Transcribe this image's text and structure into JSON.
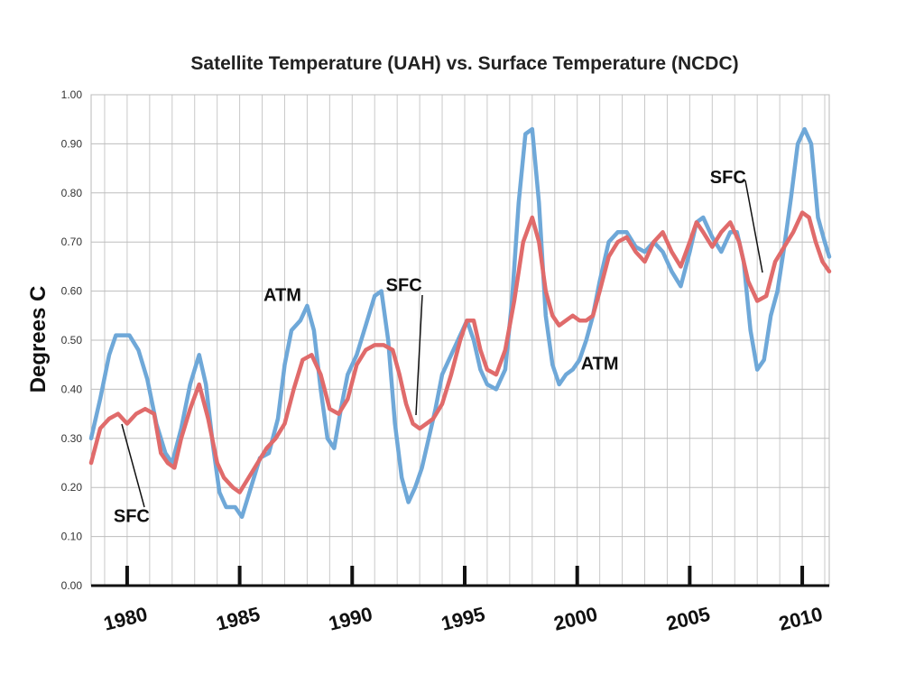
{
  "chart_data": {
    "type": "line",
    "title": "Satellite Temperature (UAH) vs. Surface Temperature (NCDC)",
    "ylabel": "Degrees C",
    "xlabel": "",
    "xlim": [
      1978.4,
      2011.2
    ],
    "ylim": [
      0.0,
      1.0
    ],
    "yticks": [
      "0.00",
      "0.10",
      "0.20",
      "0.30",
      "0.40",
      "0.50",
      "0.60",
      "0.70",
      "0.80",
      "0.90",
      "1.00"
    ],
    "xticks": [
      "1980",
      "1985",
      "1990",
      "1995",
      "2000",
      "2005",
      "2010"
    ],
    "grid": true,
    "series": [
      {
        "name": "ATM",
        "color": "#6fa8d8",
        "x": [
          1978.4,
          1978.8,
          1979.2,
          1979.5,
          1979.8,
          1980.1,
          1980.5,
          1980.9,
          1981.3,
          1981.7,
          1982.0,
          1982.4,
          1982.8,
          1983.2,
          1983.5,
          1983.8,
          1984.1,
          1984.4,
          1984.8,
          1985.1,
          1985.5,
          1985.9,
          1986.3,
          1986.7,
          1987.0,
          1987.3,
          1987.7,
          1988.0,
          1988.3,
          1988.6,
          1988.9,
          1989.2,
          1989.5,
          1989.8,
          1990.2,
          1990.6,
          1991.0,
          1991.3,
          1991.6,
          1991.9,
          1992.2,
          1992.5,
          1992.8,
          1993.1,
          1993.4,
          1993.7,
          1994.0,
          1994.4,
          1994.8,
          1995.1,
          1995.4,
          1995.7,
          1996.0,
          1996.4,
          1996.8,
          1997.1,
          1997.4,
          1997.7,
          1998.0,
          1998.3,
          1998.6,
          1998.9,
          1999.2,
          1999.5,
          1999.8,
          2000.1,
          2000.4,
          2000.7,
          2001.0,
          2001.4,
          2001.8,
          2002.2,
          2002.6,
          2003.0,
          2003.4,
          2003.8,
          2004.2,
          2004.6,
          2005.0,
          2005.3,
          2005.6,
          2006.0,
          2006.4,
          2006.8,
          2007.1,
          2007.4,
          2007.7,
          2008.0,
          2008.3,
          2008.6,
          2008.9,
          2009.2,
          2009.5,
          2009.8,
          2010.1,
          2010.4,
          2010.7,
          2011.0,
          2011.2
        ],
        "values": [
          0.3,
          0.38,
          0.47,
          0.51,
          0.51,
          0.51,
          0.48,
          0.42,
          0.33,
          0.27,
          0.25,
          0.32,
          0.41,
          0.47,
          0.41,
          0.29,
          0.19,
          0.16,
          0.16,
          0.14,
          0.2,
          0.26,
          0.27,
          0.34,
          0.45,
          0.52,
          0.54,
          0.57,
          0.52,
          0.4,
          0.3,
          0.28,
          0.36,
          0.43,
          0.47,
          0.53,
          0.59,
          0.6,
          0.5,
          0.33,
          0.22,
          0.17,
          0.2,
          0.24,
          0.3,
          0.36,
          0.43,
          0.47,
          0.51,
          0.54,
          0.5,
          0.44,
          0.41,
          0.4,
          0.44,
          0.58,
          0.78,
          0.92,
          0.93,
          0.78,
          0.55,
          0.45,
          0.41,
          0.43,
          0.44,
          0.46,
          0.5,
          0.55,
          0.62,
          0.7,
          0.72,
          0.72,
          0.69,
          0.68,
          0.7,
          0.68,
          0.64,
          0.61,
          0.68,
          0.74,
          0.75,
          0.71,
          0.68,
          0.72,
          0.72,
          0.66,
          0.52,
          0.44,
          0.46,
          0.55,
          0.6,
          0.69,
          0.79,
          0.9,
          0.93,
          0.9,
          0.75,
          0.7,
          0.67
        ]
      },
      {
        "name": "SFC",
        "color": "#e06b6b",
        "x": [
          1978.4,
          1978.8,
          1979.2,
          1979.6,
          1980.0,
          1980.4,
          1980.8,
          1981.2,
          1981.5,
          1981.8,
          1982.1,
          1982.4,
          1982.8,
          1983.2,
          1983.6,
          1984.0,
          1984.3,
          1984.7,
          1985.0,
          1985.4,
          1985.8,
          1986.2,
          1986.6,
          1987.0,
          1987.4,
          1987.8,
          1988.2,
          1988.6,
          1989.0,
          1989.4,
          1989.8,
          1990.2,
          1990.6,
          1991.0,
          1991.4,
          1991.8,
          1992.1,
          1992.4,
          1992.7,
          1993.0,
          1993.3,
          1993.6,
          1994.0,
          1994.4,
          1994.8,
          1995.1,
          1995.4,
          1995.7,
          1996.0,
          1996.4,
          1996.8,
          1997.2,
          1997.6,
          1998.0,
          1998.3,
          1998.6,
          1998.9,
          1999.2,
          1999.5,
          1999.8,
          2000.1,
          2000.4,
          2000.7,
          2001.0,
          2001.4,
          2001.8,
          2002.2,
          2002.6,
          2003.0,
          2003.4,
          2003.8,
          2004.2,
          2004.6,
          2005.0,
          2005.3,
          2005.6,
          2006.0,
          2006.4,
          2006.8,
          2007.2,
          2007.6,
          2008.0,
          2008.4,
          2008.8,
          2009.2,
          2009.6,
          2010.0,
          2010.3,
          2010.6,
          2010.9,
          2011.2
        ],
        "values": [
          0.25,
          0.32,
          0.34,
          0.35,
          0.33,
          0.35,
          0.36,
          0.35,
          0.27,
          0.25,
          0.24,
          0.3,
          0.36,
          0.41,
          0.34,
          0.25,
          0.22,
          0.2,
          0.19,
          0.22,
          0.25,
          0.28,
          0.3,
          0.33,
          0.4,
          0.46,
          0.47,
          0.43,
          0.36,
          0.35,
          0.38,
          0.45,
          0.48,
          0.49,
          0.49,
          0.48,
          0.43,
          0.37,
          0.33,
          0.32,
          0.33,
          0.34,
          0.37,
          0.43,
          0.5,
          0.54,
          0.54,
          0.48,
          0.44,
          0.43,
          0.48,
          0.58,
          0.7,
          0.75,
          0.7,
          0.6,
          0.55,
          0.53,
          0.54,
          0.55,
          0.54,
          0.54,
          0.55,
          0.6,
          0.67,
          0.7,
          0.71,
          0.68,
          0.66,
          0.7,
          0.72,
          0.68,
          0.65,
          0.7,
          0.74,
          0.72,
          0.69,
          0.72,
          0.74,
          0.7,
          0.62,
          0.58,
          0.59,
          0.66,
          0.69,
          0.72,
          0.76,
          0.75,
          0.7,
          0.66,
          0.64
        ]
      }
    ],
    "annotations": [
      {
        "text": "ATM",
        "x": 1986.9,
        "y": 0.58,
        "series": "ATM"
      },
      {
        "text": "SFC",
        "x": 1992.3,
        "y": 0.6,
        "series": "SFC"
      },
      {
        "text": "SFC",
        "x": 1980.2,
        "y": 0.13,
        "series": "SFC"
      },
      {
        "text": "ATM",
        "x": 2001.0,
        "y": 0.44,
        "series": "ATM"
      },
      {
        "text": "SFC",
        "x": 2006.7,
        "y": 0.82,
        "series": "SFC"
      }
    ]
  }
}
